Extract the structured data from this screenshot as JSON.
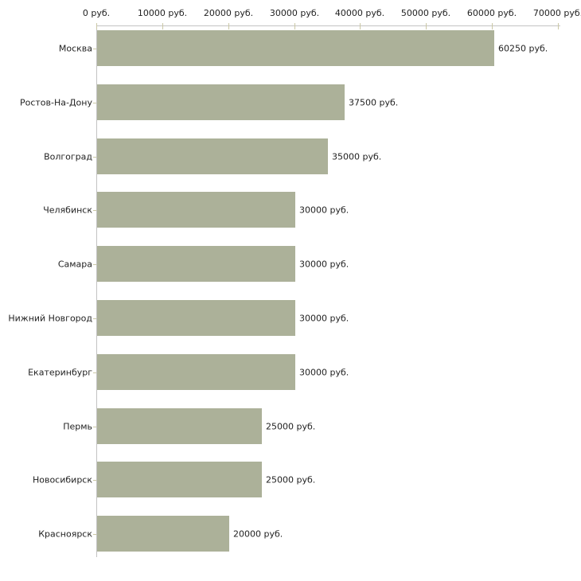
{
  "chart_data": {
    "type": "bar",
    "orientation": "horizontal",
    "unit": "руб.",
    "categories": [
      "Москва",
      "Ростов-На-Дону",
      "Волгоград",
      "Челябинск",
      "Самара",
      "Нижний Новгород",
      "Екатеринбург",
      "Пермь",
      "Новосибирск",
      "Красноярск"
    ],
    "values": [
      60250,
      37500,
      35000,
      30000,
      30000,
      30000,
      30000,
      25000,
      25000,
      20000
    ],
    "value_labels": [
      "60250 руб.",
      "37500 руб.",
      "35000 руб.",
      "30000 руб.",
      "30000 руб.",
      "30000 руб.",
      "30000 руб.",
      "25000 руб.",
      "25000 руб.",
      "20000 руб."
    ],
    "x_axis": {
      "position": "top",
      "min": 0,
      "max": 70000,
      "ticks": [
        0,
        10000,
        20000,
        30000,
        40000,
        50000,
        60000,
        70000
      ],
      "tick_labels": [
        "0 руб.",
        "10000 руб.",
        "20000 руб.",
        "30000 руб.",
        "40000 руб.",
        "50000 руб.",
        "60000 руб.",
        "70000 руб."
      ]
    },
    "grid": false,
    "legend": "none",
    "colors": {
      "bar": "#acb199",
      "axis_line": "#c2c2c2",
      "tick": "#cbc8a6",
      "text": "#222222",
      "background": "#ffffff"
    }
  }
}
